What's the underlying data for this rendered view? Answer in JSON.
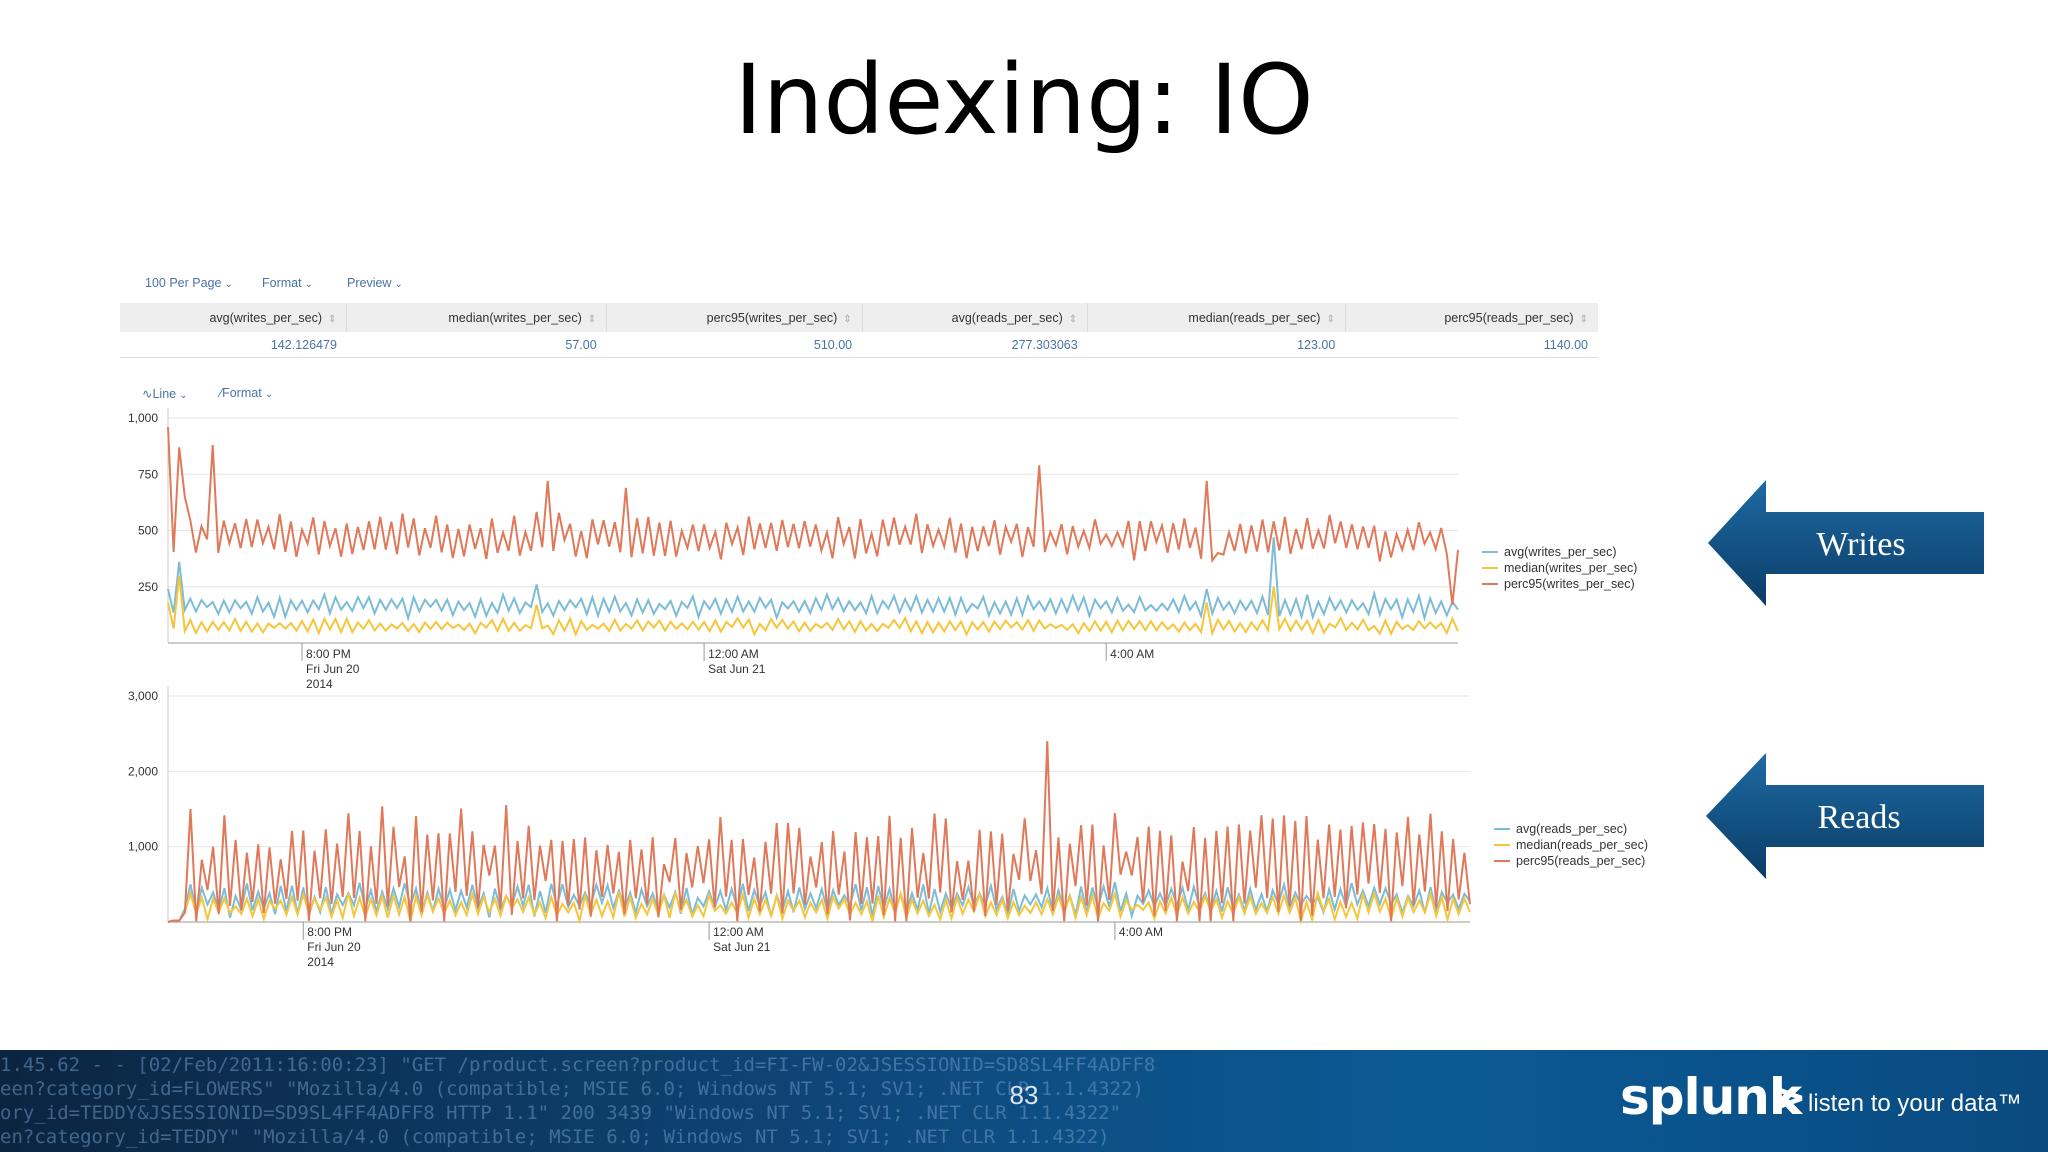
{
  "slide": {
    "title": "Indexing: IO",
    "page_number": "83"
  },
  "toolbar": {
    "per_page": "100 Per Page",
    "format": "Format",
    "preview": "Preview"
  },
  "stats_table": {
    "headers": [
      "avg(writes_per_sec)",
      "median(writes_per_sec)",
      "perc95(writes_per_sec)",
      "avg(reads_per_sec)",
      "median(reads_per_sec)",
      "perc95(reads_per_sec)"
    ],
    "row": [
      "142.126479",
      "57.00",
      "510.00",
      "277.303063",
      "123.00",
      "1140.00"
    ]
  },
  "chart_toolbar": {
    "type": "Line",
    "format": "Format"
  },
  "colors": {
    "avg": "#7cbcd6",
    "median": "#f5c63c",
    "perc95": "#e0795a",
    "link": "#4a73a8",
    "arrow": "#0f4e7e"
  },
  "callouts": {
    "writes": "Writes",
    "reads": "Reads"
  },
  "footer": {
    "log_lines": [
      "1.45.62 - - [02/Feb/2011:16:00:23] \"GET /product.screen?product_id=FI-FW-02&JSESSIONID=SD8SL4FF4ADFF8",
      "een?category_id=FLOWERS\" \"Mozilla/4.0 (compatible; MSIE 6.0; Windows NT 5.1; SV1; .NET CLR 1.1.4322)",
      "ory_id=TEDDY&JSESSIONID=SD9SL4FF4ADFF8 HTTP 1.1\" 200 3439 \"Windows NT 5.1; SV1; .NET CLR 1.1.4322\"",
      "en?category_id=TEDDY\" \"Mozilla/4.0 (compatible; MSIE 6.0; Windows NT 5.1; SV1; .NET CLR 1.1.4322)"
    ],
    "logo": {
      "wordmark": "splunk",
      "mark": ">",
      "tagline": "listen to your data™"
    }
  },
  "chart_data": [
    {
      "type": "line",
      "title": "",
      "ylim": [
        0,
        1000
      ],
      "yticks": [
        "250",
        "500",
        "750",
        "1,000"
      ],
      "ytick_values": [
        250,
        500,
        750,
        1000
      ],
      "xticks": [
        {
          "lines": [
            "8:00 PM",
            "Fri Jun 20",
            "2014"
          ],
          "index": 24
        },
        {
          "lines": [
            "12:00 AM",
            "Sat Jun 21"
          ],
          "index": 96
        },
        {
          "lines": [
            "4:00 AM"
          ],
          "index": 168
        }
      ],
      "x_count": 232,
      "legend_position": "right",
      "series": [
        {
          "name": "avg(writes_per_sec)",
          "color_key": "avg",
          "base": 165,
          "amp": 45,
          "spikes": [
            [
              2,
              360
            ],
            [
              66,
              260
            ],
            [
              186,
              240
            ],
            [
              198,
              470
            ]
          ],
          "start": 240
        },
        {
          "name": "median(writes_per_sec)",
          "color_key": "median",
          "base": 75,
          "amp": 30,
          "spikes": [
            [
              2,
              300
            ],
            [
              66,
              170
            ],
            [
              186,
              180
            ],
            [
              198,
              250
            ]
          ],
          "start": 180
        },
        {
          "name": "perc95(writes_per_sec)",
          "color_key": "perc95",
          "base": 470,
          "amp": 90,
          "spikes": [
            [
              0,
              960
            ],
            [
              2,
              870
            ],
            [
              3,
              650
            ],
            [
              8,
              880
            ],
            [
              68,
              720
            ],
            [
              82,
              690
            ],
            [
              156,
              790
            ],
            [
              186,
              720
            ],
            [
              188,
              400
            ],
            [
              230,
              170
            ]
          ],
          "start": 960
        }
      ]
    },
    {
      "type": "line",
      "title": "",
      "ylim": [
        0,
        3000
      ],
      "yticks": [
        "1,000",
        "2,000",
        "3,000"
      ],
      "ytick_values": [
        1000,
        2000,
        3000
      ],
      "xticks": [
        {
          "lines": [
            "8:00 PM",
            "Fri Jun 20",
            "2014"
          ],
          "index": 24
        },
        {
          "lines": [
            "12:00 AM",
            "Sat Jun 21"
          ],
          "index": 96
        },
        {
          "lines": [
            "4:00 AM"
          ],
          "index": 168
        }
      ],
      "x_count": 232,
      "legend_position": "right",
      "series": [
        {
          "name": "avg(reads_per_sec)",
          "color_key": "avg",
          "base": 300,
          "amp": 200,
          "spikes": [
            [
              4,
              500
            ]
          ],
          "start": 0
        },
        {
          "name": "median(reads_per_sec)",
          "color_key": "median",
          "base": 200,
          "amp": 160,
          "spikes": [
            [
              4,
              380
            ]
          ],
          "start": 0
        },
        {
          "name": "perc95(reads_per_sec)",
          "color_key": "perc95",
          "base": 700,
          "amp": 700,
          "spikes": [
            [
              4,
              1500
            ],
            [
              8,
              1000
            ],
            [
              156,
              2400
            ]
          ],
          "start": 0
        }
      ]
    }
  ]
}
